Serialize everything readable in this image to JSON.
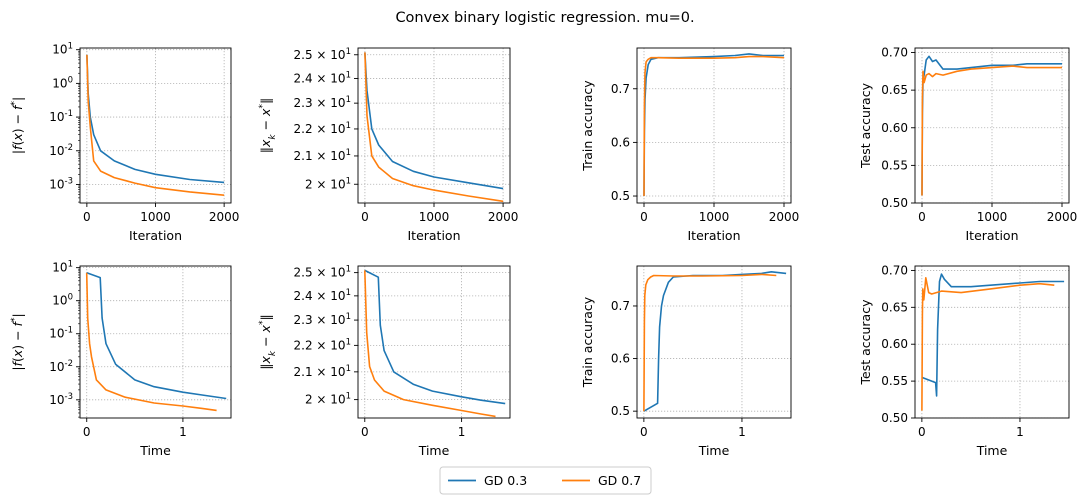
{
  "figure": {
    "title": "Convex binary logistic regression. mu=0.",
    "legend": [
      {
        "label": "GD 0.3",
        "color": "#1f77b4"
      },
      {
        "label": "GD 0.7",
        "color": "#ff7f0e"
      }
    ]
  },
  "chart_data": [
    {
      "id": "p00",
      "type": "line",
      "xlabel": "Iteration",
      "ylabel": "|f(x) − f*|",
      "xlim": [
        -100,
        2100
      ],
      "ylim_log10": [
        -3.55,
        1.05
      ],
      "yscale": "log",
      "xticks": [
        0,
        1000,
        2000
      ],
      "yticks_exp": [
        -3,
        -2,
        -1,
        0,
        1
      ],
      "grid": true,
      "series": [
        {
          "name": "GD 0.3",
          "color": "#1f77b4",
          "x": [
            0,
            20,
            50,
            100,
            200,
            400,
            700,
            1000,
            1500,
            2000
          ],
          "y": [
            7,
            0.5,
            0.1,
            0.03,
            0.01,
            0.005,
            0.0028,
            0.002,
            0.0014,
            0.00115
          ]
        },
        {
          "name": "GD 0.7",
          "color": "#ff7f0e",
          "x": [
            0,
            20,
            50,
            100,
            200,
            400,
            700,
            1000,
            1500,
            2000
          ],
          "y": [
            7,
            0.3,
            0.05,
            0.005,
            0.0025,
            0.0016,
            0.0011,
            0.0008,
            0.0006,
            0.00048
          ]
        }
      ]
    },
    {
      "id": "p01",
      "type": "line",
      "xlabel": "Iteration",
      "ylabel": "‖x_k − x*‖",
      "xlim": [
        -100,
        2100
      ],
      "ylim_log10": [
        1.287,
        1.403
      ],
      "yscale": "log",
      "xticks": [
        0,
        1000,
        2000
      ],
      "yticks": [
        20,
        21,
        22,
        23,
        24,
        25
      ],
      "ytick_labels": [
        "2 × 10¹",
        "2.1 × 10¹",
        "2.2 × 10¹",
        "2.3 × 10¹",
        "2.4 × 10¹",
        "2.5 × 10¹"
      ],
      "grid": true,
      "series": [
        {
          "name": "GD 0.3",
          "color": "#1f77b4",
          "x": [
            0,
            30,
            100,
            200,
            400,
            700,
            1000,
            1500,
            2000
          ],
          "y": [
            25.1,
            23.5,
            22.0,
            21.4,
            20.8,
            20.45,
            20.25,
            20.05,
            19.85
          ]
        },
        {
          "name": "GD 0.7",
          "color": "#ff7f0e",
          "x": [
            0,
            30,
            100,
            200,
            400,
            700,
            1000,
            1500,
            2000
          ],
          "y": [
            25.1,
            22.5,
            21.0,
            20.6,
            20.2,
            19.95,
            19.8,
            19.6,
            19.42
          ]
        }
      ]
    },
    {
      "id": "p02",
      "type": "line",
      "xlabel": "Iteration",
      "ylabel": "Train accuracy",
      "xlim": [
        -100,
        2100
      ],
      "ylim": [
        0.487,
        0.776
      ],
      "xticks": [
        0,
        1000,
        2000
      ],
      "yticks": [
        0.5,
        0.6,
        0.7
      ],
      "grid": true,
      "series": [
        {
          "name": "GD 0.3",
          "color": "#1f77b4",
          "x": [
            0,
            5,
            15,
            30,
            60,
            100,
            200,
            500,
            1000,
            1300,
            1500,
            1700,
            2000
          ],
          "y": [
            0.5,
            0.62,
            0.68,
            0.72,
            0.745,
            0.755,
            0.758,
            0.758,
            0.76,
            0.762,
            0.765,
            0.762,
            0.762
          ]
        },
        {
          "name": "GD 0.7",
          "color": "#ff7f0e",
          "x": [
            0,
            5,
            15,
            30,
            60,
            100,
            200,
            500,
            1000,
            1300,
            1500,
            1700,
            2000
          ],
          "y": [
            0.5,
            0.67,
            0.73,
            0.75,
            0.755,
            0.758,
            0.758,
            0.757,
            0.757,
            0.758,
            0.76,
            0.76,
            0.758
          ]
        }
      ]
    },
    {
      "id": "p03",
      "type": "line",
      "xlabel": "Iteration",
      "ylabel": "Test accuracy",
      "xlim": [
        -100,
        2100
      ],
      "ylim": [
        0.5,
        0.706
      ],
      "xticks": [
        0,
        1000,
        2000
      ],
      "yticks": [
        0.5,
        0.55,
        0.6,
        0.65,
        0.7
      ],
      "grid": true,
      "series": [
        {
          "name": "GD 0.3",
          "color": "#1f77b4",
          "x": [
            0,
            5,
            15,
            30,
            60,
            100,
            150,
            200,
            300,
            500,
            700,
            1000,
            1300,
            1500,
            2000
          ],
          "y": [
            0.51,
            0.62,
            0.66,
            0.67,
            0.69,
            0.695,
            0.688,
            0.69,
            0.678,
            0.678,
            0.68,
            0.683,
            0.683,
            0.685,
            0.685
          ]
        },
        {
          "name": "GD 0.7",
          "color": "#ff7f0e",
          "x": [
            0,
            5,
            15,
            30,
            60,
            100,
            150,
            200,
            300,
            500,
            700,
            1000,
            1300,
            1500,
            2000
          ],
          "y": [
            0.51,
            0.64,
            0.675,
            0.66,
            0.67,
            0.672,
            0.668,
            0.672,
            0.67,
            0.675,
            0.678,
            0.68,
            0.682,
            0.68,
            0.68
          ]
        }
      ]
    },
    {
      "id": "p10",
      "type": "line",
      "xlabel": "Time",
      "ylabel": "|f(x) − f*|",
      "xlim": [
        -0.07,
        1.5
      ],
      "ylim_log10": [
        -3.55,
        1.05
      ],
      "yscale": "log",
      "xticks": [
        0,
        1
      ],
      "yticks_exp": [
        -3,
        -2,
        -1,
        0,
        1
      ],
      "grid": true,
      "series": [
        {
          "name": "GD 0.3",
          "color": "#1f77b4",
          "x": [
            0,
            0.1,
            0.14,
            0.16,
            0.2,
            0.3,
            0.5,
            0.7,
            1.0,
            1.2,
            1.45
          ],
          "y": [
            7,
            5.5,
            5,
            0.3,
            0.05,
            0.012,
            0.004,
            0.0025,
            0.0017,
            0.0014,
            0.0011
          ]
        },
        {
          "name": "GD 0.7",
          "color": "#ff7f0e",
          "x": [
            0,
            0.01,
            0.03,
            0.05,
            0.1,
            0.2,
            0.4,
            0.7,
            1.0,
            1.2,
            1.35
          ],
          "y": [
            7,
            0.3,
            0.05,
            0.02,
            0.004,
            0.002,
            0.0012,
            0.0008,
            0.00065,
            0.00055,
            0.00048
          ]
        }
      ]
    },
    {
      "id": "p11",
      "type": "line",
      "xlabel": "Time",
      "ylabel": "‖x_k − x*‖",
      "xlim": [
        -0.07,
        1.5
      ],
      "ylim_log10": [
        1.287,
        1.403
      ],
      "yscale": "log",
      "xticks": [
        0,
        1
      ],
      "yticks": [
        20,
        21,
        22,
        23,
        24,
        25
      ],
      "ytick_labels": [
        "2 × 10¹",
        "2.1 × 10¹",
        "2.2 × 10¹",
        "2.3 × 10¹",
        "2.4 × 10¹",
        "2.5 × 10¹"
      ],
      "grid": true,
      "series": [
        {
          "name": "GD 0.3",
          "color": "#1f77b4",
          "x": [
            0,
            0.14,
            0.16,
            0.2,
            0.3,
            0.5,
            0.7,
            1.0,
            1.2,
            1.45
          ],
          "y": [
            25.1,
            24.8,
            22.8,
            21.8,
            21.0,
            20.55,
            20.3,
            20.1,
            19.98,
            19.86
          ]
        },
        {
          "name": "GD 0.7",
          "color": "#ff7f0e",
          "x": [
            0,
            0.02,
            0.05,
            0.1,
            0.2,
            0.4,
            0.7,
            1.0,
            1.2,
            1.35
          ],
          "y": [
            25.1,
            22.5,
            21.2,
            20.7,
            20.3,
            20.0,
            19.8,
            19.62,
            19.5,
            19.42
          ]
        }
      ]
    },
    {
      "id": "p12",
      "type": "line",
      "xlabel": "Time",
      "ylabel": "Train accuracy",
      "xlim": [
        -0.07,
        1.5
      ],
      "ylim": [
        0.487,
        0.776
      ],
      "xticks": [
        0,
        1
      ],
      "yticks": [
        0.5,
        0.6,
        0.7
      ],
      "grid": true,
      "series": [
        {
          "name": "GD 0.3",
          "color": "#1f77b4",
          "x": [
            0,
            0.14,
            0.15,
            0.16,
            0.18,
            0.2,
            0.25,
            0.3,
            0.5,
            0.8,
            1.0,
            1.2,
            1.3,
            1.45
          ],
          "y": [
            0.5,
            0.515,
            0.6,
            0.66,
            0.7,
            0.72,
            0.745,
            0.755,
            0.758,
            0.758,
            0.76,
            0.762,
            0.765,
            0.762
          ]
        },
        {
          "name": "GD 0.7",
          "color": "#ff7f0e",
          "x": [
            0,
            0.005,
            0.01,
            0.02,
            0.04,
            0.07,
            0.1,
            0.3,
            0.6,
            1.0,
            1.2,
            1.35
          ],
          "y": [
            0.5,
            0.67,
            0.72,
            0.74,
            0.75,
            0.755,
            0.758,
            0.757,
            0.757,
            0.758,
            0.76,
            0.758
          ]
        }
      ]
    },
    {
      "id": "p13",
      "type": "line",
      "xlabel": "Time",
      "ylabel": "Test accuracy",
      "xlim": [
        -0.07,
        1.5
      ],
      "ylim": [
        0.5,
        0.706
      ],
      "xticks": [
        0,
        1
      ],
      "yticks": [
        0.5,
        0.55,
        0.6,
        0.65,
        0.7
      ],
      "grid": true,
      "series": [
        {
          "name": "GD 0.3",
          "color": "#1f77b4",
          "x": [
            0,
            0.14,
            0.15,
            0.16,
            0.18,
            0.2,
            0.23,
            0.3,
            0.5,
            0.7,
            1.0,
            1.2,
            1.45
          ],
          "y": [
            0.555,
            0.548,
            0.53,
            0.62,
            0.685,
            0.695,
            0.688,
            0.678,
            0.678,
            0.68,
            0.683,
            0.685,
            0.685
          ]
        },
        {
          "name": "GD 0.7",
          "color": "#ff7f0e",
          "x": [
            0,
            0.005,
            0.01,
            0.02,
            0.04,
            0.07,
            0.1,
            0.2,
            0.4,
            0.7,
            1.0,
            1.2,
            1.35
          ],
          "y": [
            0.51,
            0.64,
            0.675,
            0.66,
            0.69,
            0.67,
            0.668,
            0.672,
            0.67,
            0.675,
            0.68,
            0.682,
            0.68
          ]
        }
      ]
    }
  ]
}
